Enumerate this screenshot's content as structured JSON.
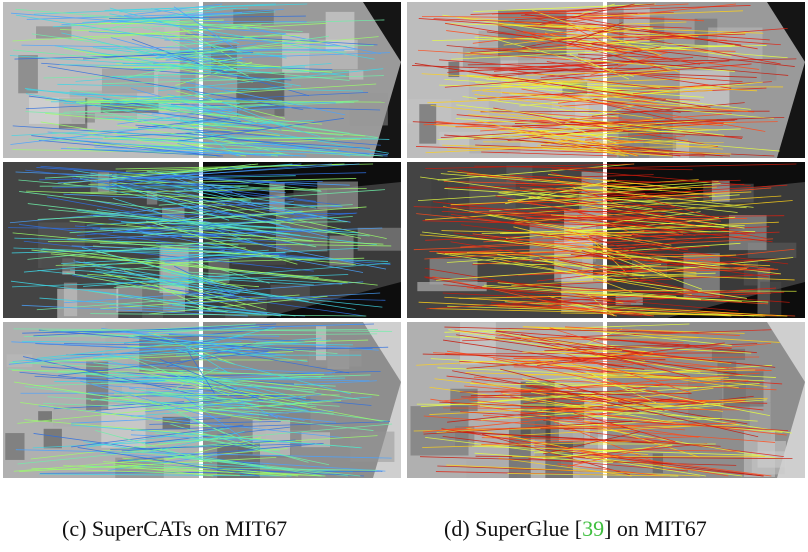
{
  "figure": {
    "panels": [
      {
        "id": "c",
        "method": "SuperCATs",
        "palette": [
          "#4aa3ff",
          "#2f6fe0",
          "#6ff0a8",
          "#9cff6a",
          "#3fd6e6"
        ]
      },
      {
        "id": "d",
        "method": "SuperGlue",
        "palette": [
          "#e02010",
          "#c81a0c",
          "#ff4a1a",
          "#ffd21a",
          "#e8ff40"
        ]
      }
    ],
    "captions": {
      "left": {
        "prefix": "(c) SuperCATs on MIT67"
      },
      "right": {
        "prefix": "(d) SuperGlue [",
        "cite": "39",
        "suffix": "] on MIT67"
      }
    }
  }
}
